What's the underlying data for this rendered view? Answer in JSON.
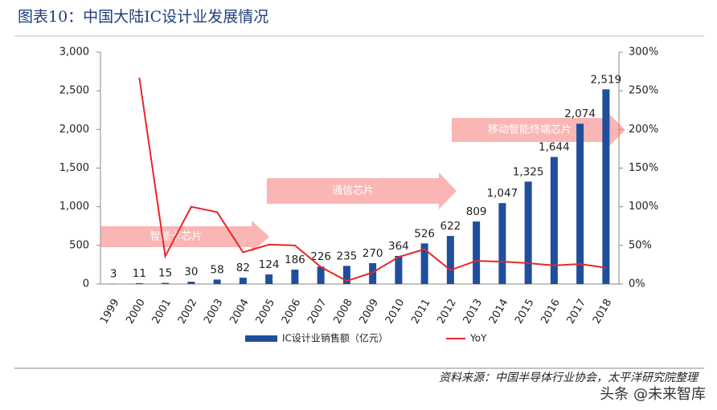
{
  "chart_data": {
    "type": "bar-line",
    "title": "图表10：中国大陆IC设计业发展情况",
    "categories": [
      "1999",
      "2000",
      "2001",
      "2002",
      "2003",
      "2004",
      "2005",
      "2006",
      "2007",
      "2008",
      "2009",
      "2010",
      "2011",
      "2012",
      "2013",
      "2014",
      "2015",
      "2016",
      "2017",
      "2018"
    ],
    "series": [
      {
        "name": "IC设计业销售额（亿元）",
        "type": "bar",
        "color": "#1f4e9c",
        "axis": "y",
        "values": [
          3,
          11,
          15,
          30,
          58,
          82,
          124,
          186,
          226,
          235,
          270,
          364,
          526,
          622,
          809,
          1047,
          1325,
          1644,
          2074,
          2519
        ],
        "value_labels": [
          "3",
          "11",
          "15",
          "30",
          "58",
          "82",
          "124",
          "186",
          "226",
          "235",
          "270",
          "364",
          "526",
          "622",
          "809",
          "1,047",
          "1,325",
          "1,644",
          "2,074",
          "2,519"
        ]
      },
      {
        "name": "YoY",
        "type": "line",
        "color": "#e8262a",
        "axis": "y2",
        "values": [
          null,
          267,
          36,
          100,
          93,
          41,
          51,
          50,
          22,
          4,
          15,
          35,
          45,
          18,
          30,
          29,
          27,
          24,
          26,
          21
        ]
      }
    ],
    "ylim": [
      0,
      3000
    ],
    "yticks": [
      0,
      {
        "value": 500,
        "label": "500"
      },
      {
        "value": 1000,
        "label": "1,000"
      },
      {
        "value": 1500,
        "label": "1,500"
      },
      {
        "value": 2000,
        "label": "2,000"
      },
      {
        "value": 2500,
        "label": "2,500"
      },
      {
        "value": 3000,
        "label": "3,000"
      }
    ],
    "y2lim": [
      0,
      300
    ],
    "y2ticks": [
      {
        "value": 0,
        "label": "0%"
      },
      {
        "value": 50,
        "label": "50%"
      },
      {
        "value": 100,
        "label": "100%"
      },
      {
        "value": 150,
        "label": "150%"
      },
      {
        "value": 200,
        "label": "200%"
      },
      {
        "value": 250,
        "label": "250%"
      },
      {
        "value": 300,
        "label": "300%"
      }
    ],
    "annotations": [
      "智能卡芯片",
      "通信芯片",
      "移动智能终端芯片"
    ],
    "source": "资料来源：中国半导体行业协会，太平洋研究院整理",
    "watermark": "头条 @未来智库"
  }
}
